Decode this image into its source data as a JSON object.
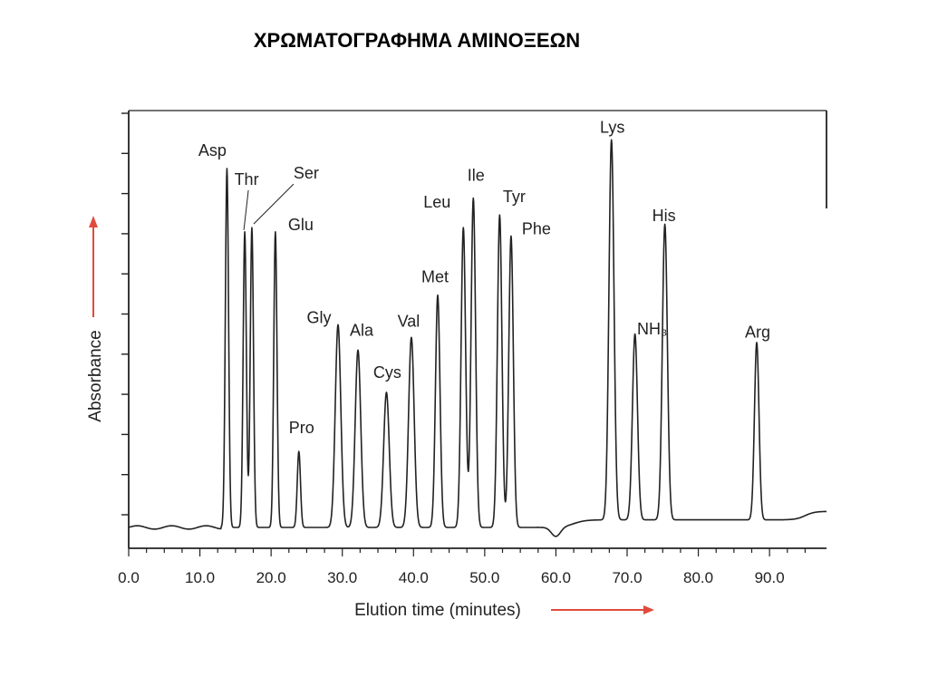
{
  "slide": {
    "title": "ΧΡΩΜΑΤΟΓΡΑΦΗΜΑ ΑΜΙΝΟΞΕΩΝ"
  },
  "chart_data": {
    "type": "line",
    "title": "",
    "xlabel": "Elution time (minutes)",
    "ylabel": "Absorbance",
    "xlim": [
      0,
      98
    ],
    "ylim": [
      0,
      1
    ],
    "x_ticks": [
      "0.0",
      "10.0",
      "20.0",
      "30.0",
      "40.0",
      "50.0",
      "60.0",
      "70.0",
      "80.0",
      "90.0"
    ],
    "y_ticks_labeled": false,
    "baseline": 0.03,
    "peaks": [
      {
        "label": "Asp",
        "x": 13.8,
        "y": 0.88
      },
      {
        "label": "Thr",
        "x": 16.3,
        "y": 0.73
      },
      {
        "label": "Ser",
        "x": 17.3,
        "y": 0.74
      },
      {
        "label": "Glu",
        "x": 20.6,
        "y": 0.73
      },
      {
        "label": "Pro",
        "x": 23.9,
        "y": 0.21
      },
      {
        "label": "Gly",
        "x": 29.4,
        "y": 0.51
      },
      {
        "label": "Ala",
        "x": 32.2,
        "y": 0.45
      },
      {
        "label": "Cys",
        "x": 36.2,
        "y": 0.35
      },
      {
        "label": "Val",
        "x": 39.7,
        "y": 0.48
      },
      {
        "label": "Met",
        "x": 43.4,
        "y": 0.58
      },
      {
        "label": "Leu",
        "x": 47.0,
        "y": 0.74
      },
      {
        "label": "Ile",
        "x": 48.4,
        "y": 0.81
      },
      {
        "label": "Tyr",
        "x": 52.1,
        "y": 0.77
      },
      {
        "label": "Phe",
        "x": 53.7,
        "y": 0.72
      },
      {
        "label": "Lys",
        "x": 67.8,
        "y": 0.93
      },
      {
        "label": "NH₃",
        "x": 71.1,
        "y": 0.47
      },
      {
        "label": "His",
        "x": 75.3,
        "y": 0.73
      },
      {
        "label": "Arg",
        "x": 88.2,
        "y": 0.45
      }
    ],
    "legend": "none",
    "grid": false,
    "colors": {
      "trace": "#222222",
      "arrow": "#e04a3c"
    }
  }
}
